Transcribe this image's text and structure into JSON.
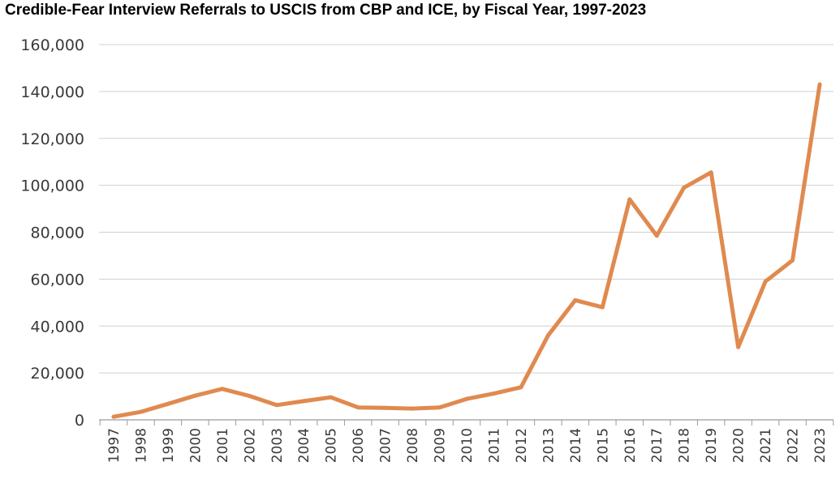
{
  "chart_data": {
    "type": "line",
    "title": "Credible-Fear Interview Referrals to USCIS from CBP and ICE, by Fiscal Year, 1997-2023",
    "xlabel": "",
    "ylabel": "",
    "ylim": [
      0,
      160000
    ],
    "yticks": [
      0,
      20000,
      40000,
      60000,
      80000,
      100000,
      120000,
      140000,
      160000
    ],
    "grid": true,
    "line_color": "#e08a4f",
    "categories": [
      "1997",
      "1998",
      "1999",
      "2000",
      "2001",
      "2002",
      "2003",
      "2004",
      "2005",
      "2006",
      "2007",
      "2008",
      "2009",
      "2010",
      "2011",
      "2012",
      "2013",
      "2014",
      "2015",
      "2016",
      "2017",
      "2018",
      "2019",
      "2020",
      "2021",
      "2022",
      "2023"
    ],
    "values": [
      1300,
      3400,
      6800,
      10300,
      13200,
      10200,
      6300,
      8000,
      9600,
      5300,
      5100,
      4800,
      5300,
      8900,
      11200,
      13900,
      36000,
      51000,
      48000,
      94000,
      78500,
      99000,
      105500,
      31000,
      59000,
      68000,
      143000
    ]
  }
}
